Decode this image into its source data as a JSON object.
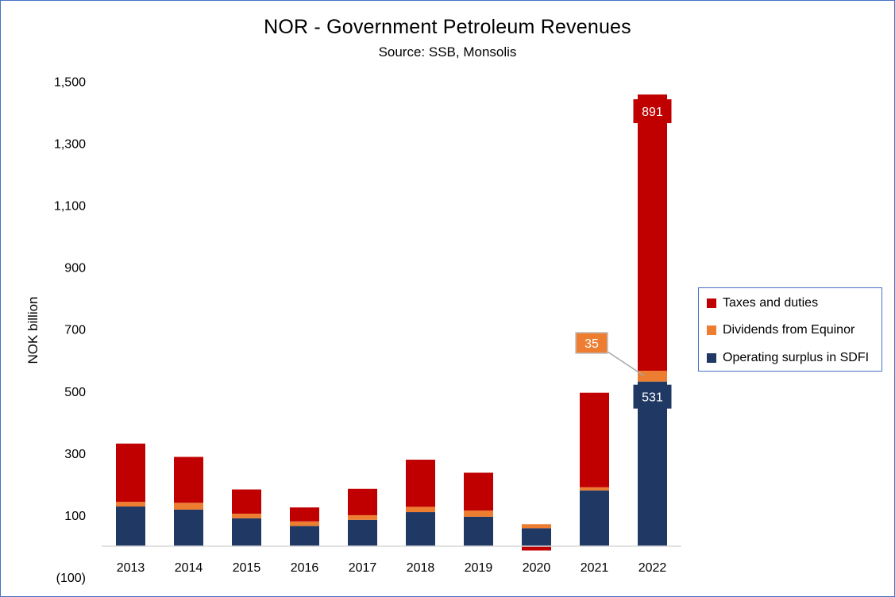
{
  "chart_data": {
    "type": "bar",
    "stacked": true,
    "title": "NOR - Government Petroleum Revenues",
    "subtitle": "Source: SSB, Monsolis",
    "xlabel": "",
    "ylabel": "NOK billion",
    "categories": [
      "2013",
      "2014",
      "2015",
      "2016",
      "2017",
      "2018",
      "2019",
      "2020",
      "2021",
      "2022"
    ],
    "series": [
      {
        "name": "Operating surplus in SDFI",
        "color": "#203864",
        "values": [
          128,
          118,
          90,
          65,
          85,
          110,
          95,
          58,
          180,
          531
        ]
      },
      {
        "name": "Dividends from Equinor",
        "color": "#ed7d31",
        "values": [
          15,
          22,
          15,
          15,
          15,
          17,
          20,
          13,
          10,
          35
        ]
      },
      {
        "name": "Taxes and duties",
        "color": "#c00000",
        "values": [
          188,
          148,
          78,
          45,
          85,
          152,
          122,
          -14,
          305,
          891
        ]
      }
    ],
    "ylim": [
      -100,
      1500
    ],
    "yticks": [
      -100,
      100,
      300,
      500,
      700,
      900,
      1100,
      1300,
      1500
    ],
    "ytick_labels": [
      "(100)",
      "100",
      "300",
      "500",
      "700",
      "900",
      "1,100",
      "1,300",
      "1,500"
    ],
    "data_labels": [
      {
        "category": "2022",
        "series": "Taxes and duties",
        "text": "891"
      },
      {
        "category": "2022",
        "series": "Dividends from Equinor",
        "text": "35"
      },
      {
        "category": "2022",
        "series": "Operating surplus in SDFI",
        "text": "531"
      }
    ],
    "grid": false,
    "legend": "right"
  },
  "legend_items": [
    {
      "label": "Taxes and duties",
      "color": "#c00000"
    },
    {
      "label": "Dividends from Equinor",
      "color": "#ed7d31"
    },
    {
      "label": "Operating surplus in SDFI",
      "color": "#203864"
    }
  ]
}
